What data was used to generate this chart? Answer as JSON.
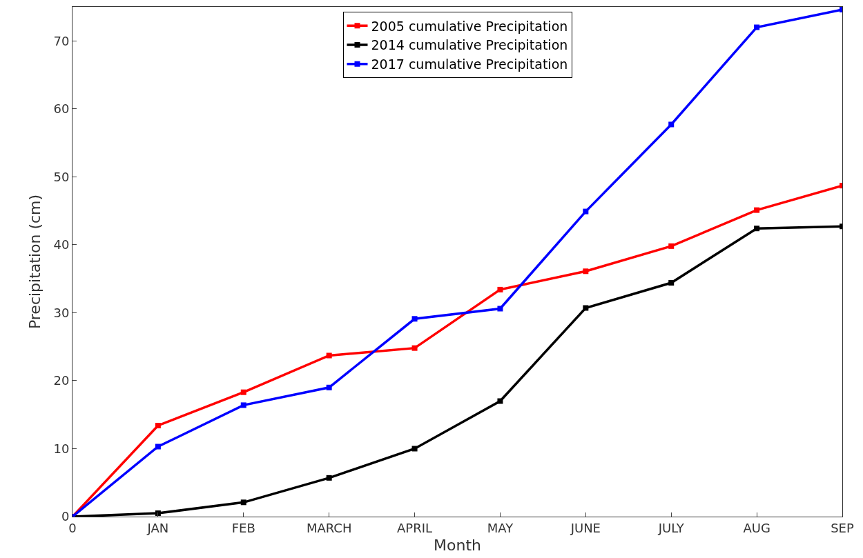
{
  "chart_data": {
    "type": "line",
    "xlabel": "Month",
    "ylabel": "Precipitation (cm)",
    "categories": [
      "0",
      "JAN",
      "FEB",
      "MARCH",
      "APRIL",
      "MAY",
      "JUNE",
      "JULY",
      "AUG",
      "SEP"
    ],
    "series": [
      {
        "name": "2005 cumulative Precipitation",
        "color": "#ff0000",
        "values": [
          0,
          13.4,
          18.3,
          23.7,
          24.8,
          33.4,
          36.1,
          39.8,
          45.1,
          48.7
        ]
      },
      {
        "name": "2014 cumulative Precipitation",
        "color": "#000000",
        "values": [
          0,
          0.5,
          2.1,
          5.7,
          10,
          17,
          30.7,
          34.4,
          42.4,
          42.7
        ]
      },
      {
        "name": "2017 cumulative Precipitation",
        "color": "#0000ff",
        "values": [
          0,
          10.3,
          16.4,
          19.0,
          29.1,
          30.6,
          44.9,
          57.7,
          72.0,
          74.6
        ]
      }
    ],
    "ylim": [
      0,
      75
    ],
    "yticks": [
      0,
      10,
      20,
      30,
      40,
      50,
      60,
      70
    ],
    "grid": false,
    "legend": "top",
    "marker": "square",
    "line_style": "solid"
  }
}
